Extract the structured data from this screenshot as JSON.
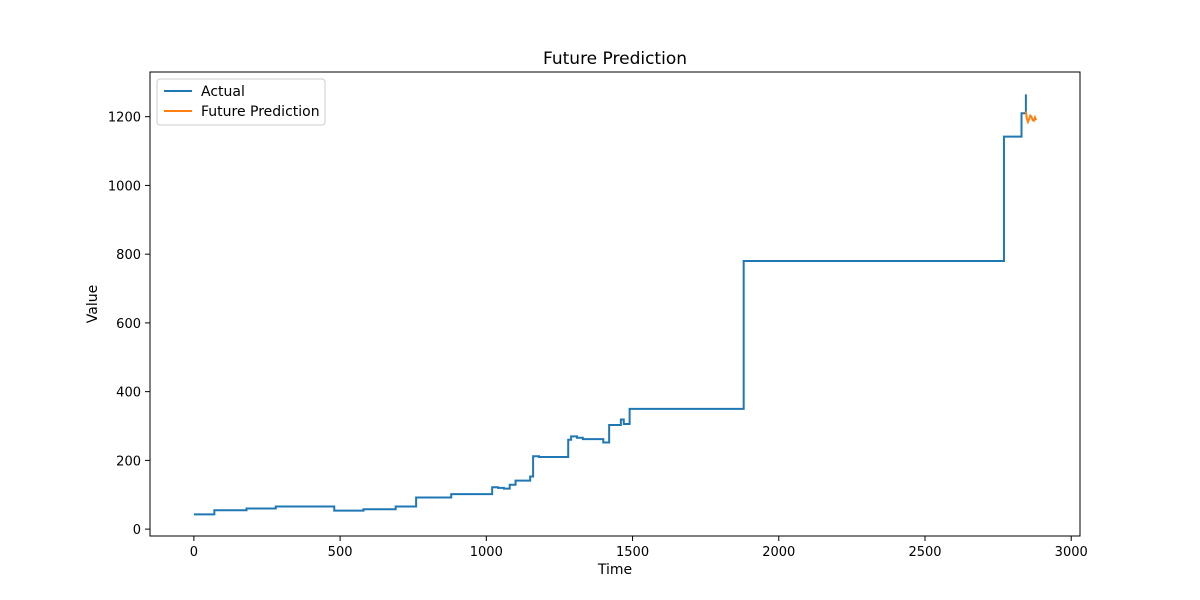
{
  "chart_data": {
    "type": "line",
    "title": "Future Prediction",
    "xlabel": "Time",
    "ylabel": "Value",
    "xlim": [
      -150,
      3030
    ],
    "ylim": [
      -20,
      1330
    ],
    "xticks": [
      0,
      500,
      1000,
      1500,
      2000,
      2500,
      3000
    ],
    "yticks": [
      0,
      200,
      400,
      600,
      800,
      1000,
      1200
    ],
    "legend_position": "upper-left",
    "grid": false,
    "series": [
      {
        "name": "Actual",
        "color": "#1f77b4",
        "step": true,
        "x": [
          0,
          70,
          180,
          280,
          480,
          580,
          690,
          760,
          880,
          1020,
          1040,
          1060,
          1080,
          1100,
          1150,
          1160,
          1180,
          1280,
          1290,
          1310,
          1330,
          1400,
          1420,
          1460,
          1470,
          1490,
          1870,
          1880,
          2760,
          2770,
          2820,
          2830,
          2845
        ],
        "y": [
          43,
          55,
          60,
          66,
          54,
          58,
          66,
          92,
          102,
          122,
          120,
          118,
          129,
          141,
          153,
          212,
          210,
          260,
          270,
          266,
          262,
          252,
          303,
          319,
          306,
          350,
          350,
          780,
          780,
          1142,
          1142,
          1210,
          1265
        ]
      },
      {
        "name": "Future Prediction",
        "color": "#ff7f0e",
        "step": false,
        "x": [
          2845,
          2848,
          2852,
          2856,
          2860,
          2864,
          2868,
          2872,
          2876,
          2880
        ],
        "y": [
          1215,
          1195,
          1185,
          1193,
          1203,
          1200,
          1190,
          1188,
          1198,
          1190
        ]
      }
    ]
  }
}
